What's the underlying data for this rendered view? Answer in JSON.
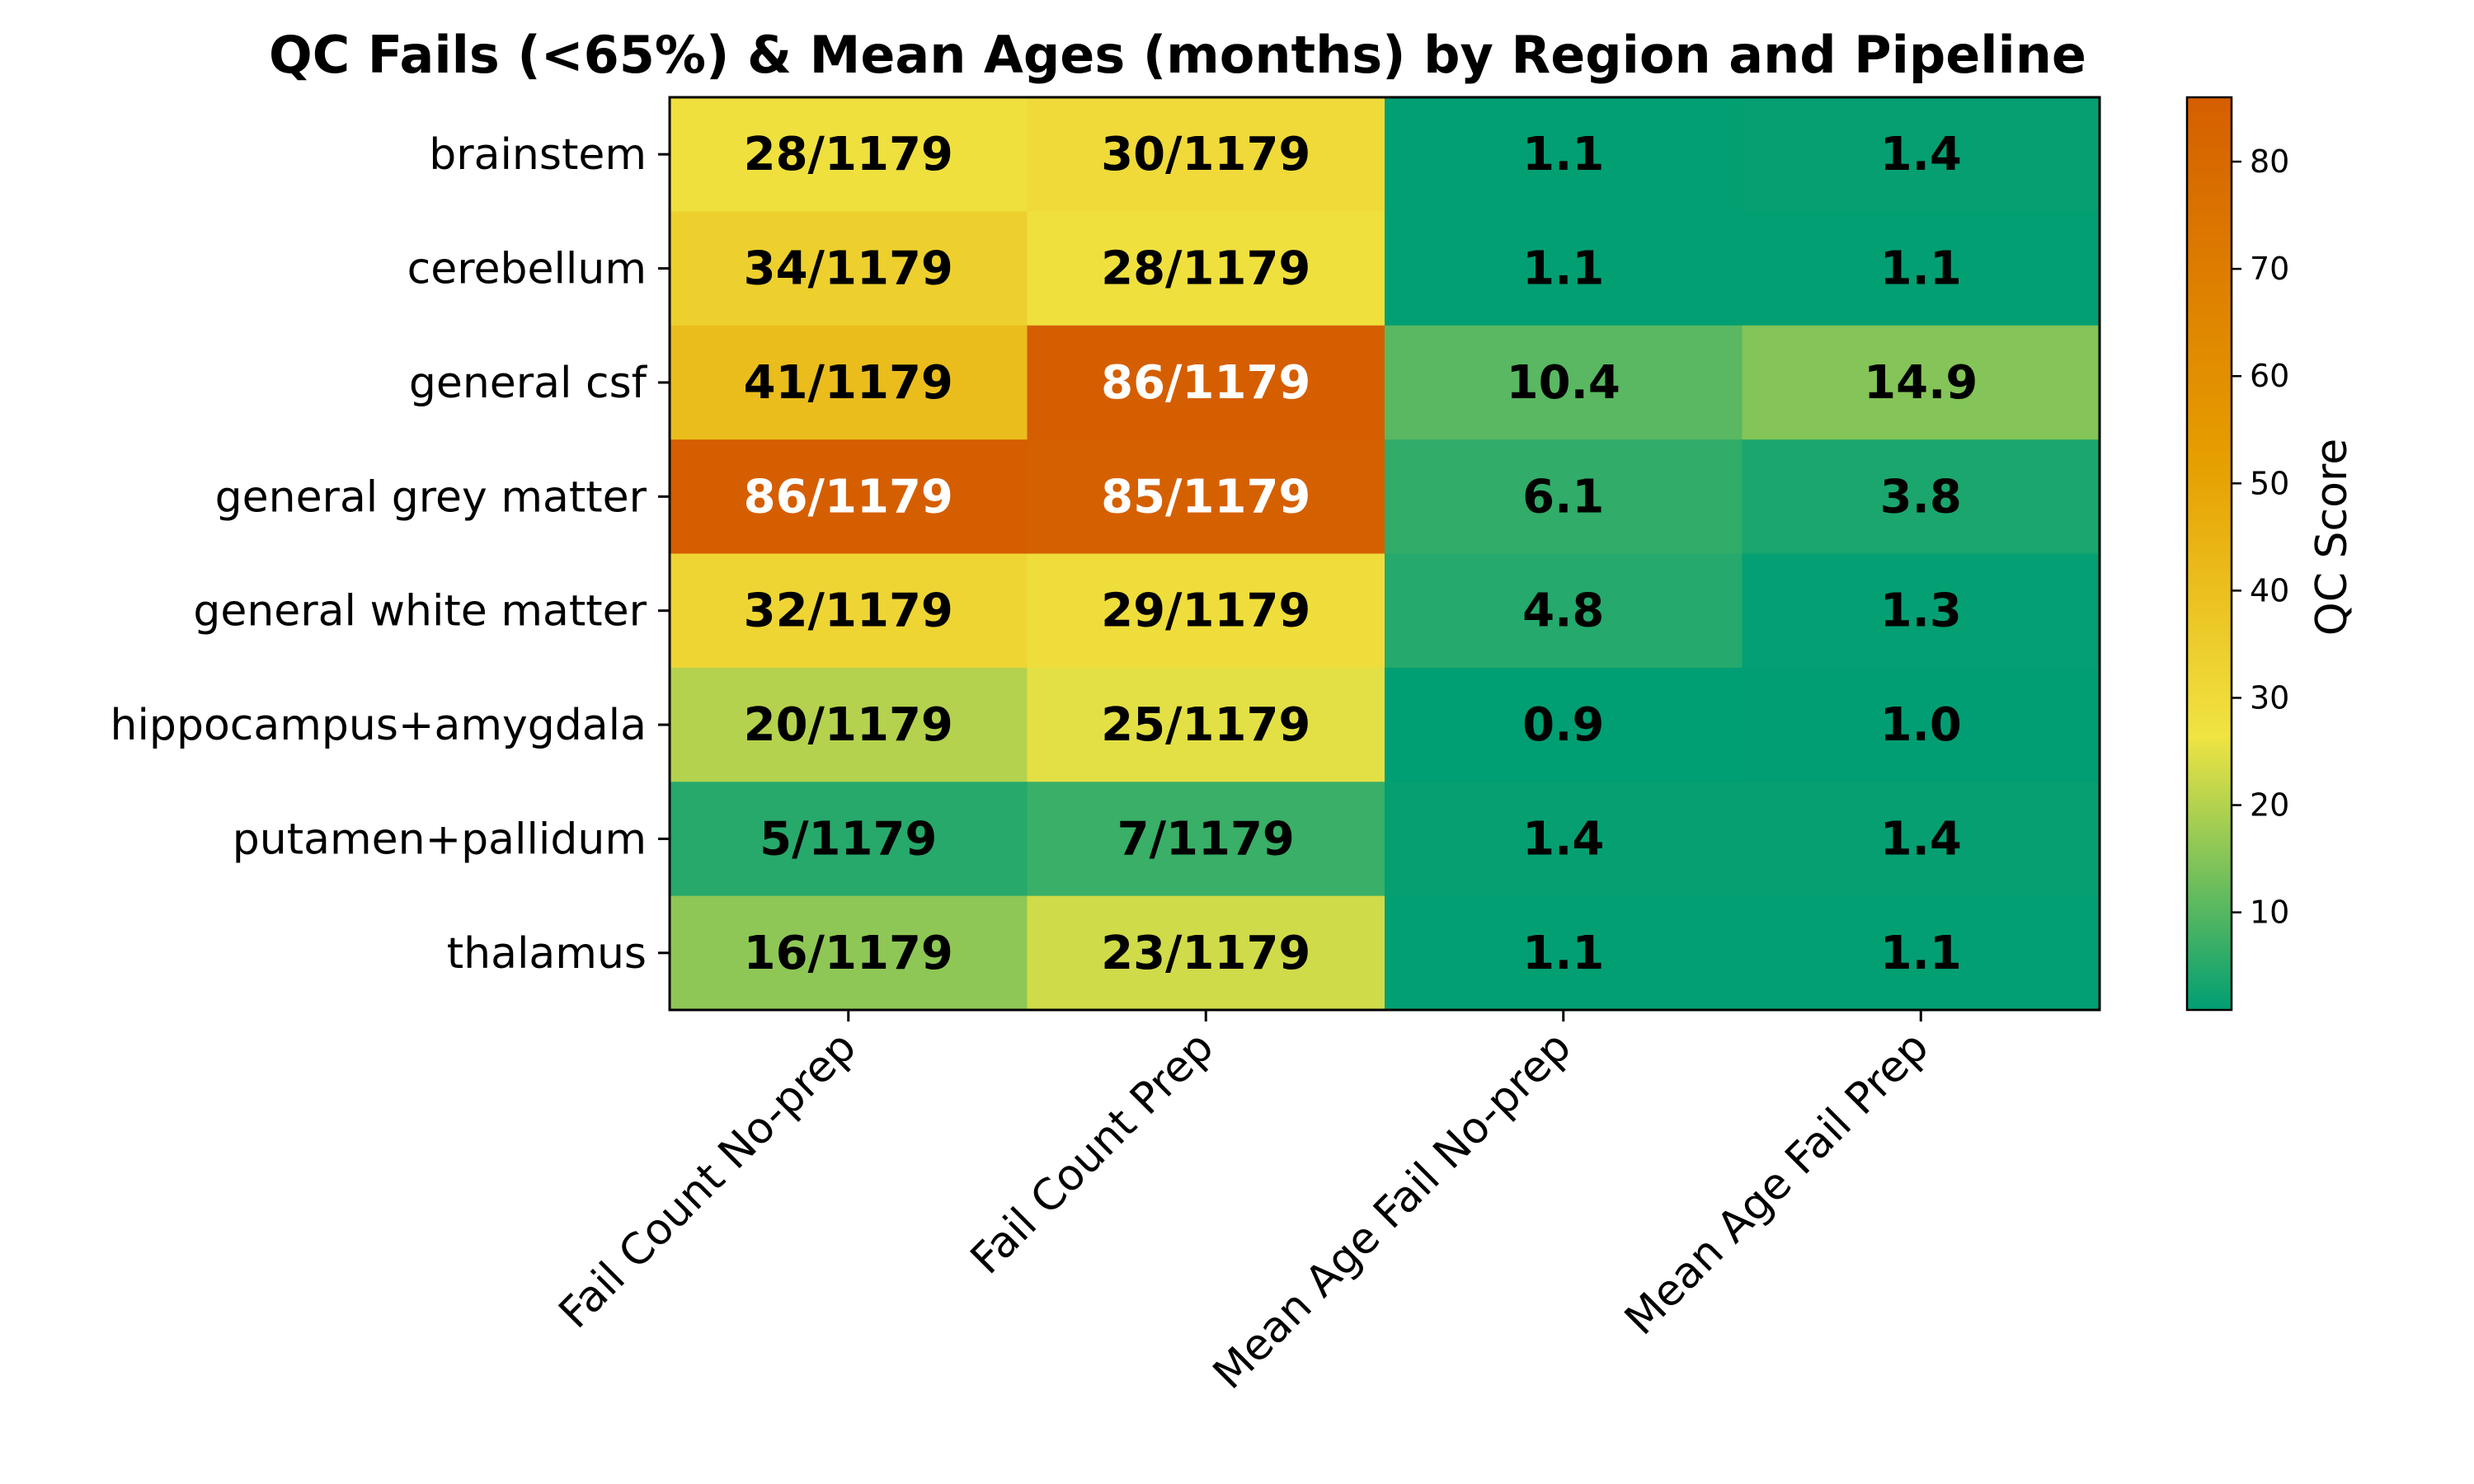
{
  "chart_data": {
    "type": "heatmap",
    "title": "QC Fails (<65%) & Mean Ages (months) by Region and Pipeline",
    "rows": [
      "brainstem",
      "cerebellum",
      "general csf",
      "general grey matter",
      "general white matter",
      "hippocampus+amygdala",
      "putamen+pallidum",
      "thalamus"
    ],
    "columns": [
      "Fail Count No-prep",
      "Fail Count Prep",
      "Mean Age Fail No-prep",
      "Mean Age Fail Prep"
    ],
    "values": [
      [
        28,
        30,
        1.1,
        1.4
      ],
      [
        34,
        28,
        1.1,
        1.1
      ],
      [
        41,
        86,
        10.4,
        14.9
      ],
      [
        86,
        85,
        6.1,
        3.8
      ],
      [
        32,
        29,
        4.8,
        1.3
      ],
      [
        20,
        25,
        0.9,
        1.0
      ],
      [
        5,
        7,
        1.4,
        1.4
      ],
      [
        16,
        23,
        1.1,
        1.1
      ]
    ],
    "labels": [
      [
        "28/1179",
        "30/1179",
        "1.1",
        "1.4"
      ],
      [
        "34/1179",
        "28/1179",
        "1.1",
        "1.1"
      ],
      [
        "41/1179",
        "86/1179",
        "10.4",
        "14.9"
      ],
      [
        "86/1179",
        "85/1179",
        "6.1",
        "3.8"
      ],
      [
        "32/1179",
        "29/1179",
        "4.8",
        "1.3"
      ],
      [
        "20/1179",
        "25/1179",
        "0.9",
        "1.0"
      ],
      [
        "5/1179",
        "7/1179",
        "1.4",
        "1.4"
      ],
      [
        "16/1179",
        "23/1179",
        "1.1",
        "1.1"
      ]
    ],
    "colorbar": {
      "label": "QC Score",
      "range": [
        0.9,
        86
      ],
      "ticks": [
        10,
        20,
        30,
        40,
        50,
        60,
        70,
        80
      ],
      "colors": [
        "#009e73",
        "#f0e442",
        "#e69f00",
        "#d55e00"
      ],
      "stops": [
        0,
        0.3,
        0.6,
        1
      ]
    },
    "grid": false
  }
}
